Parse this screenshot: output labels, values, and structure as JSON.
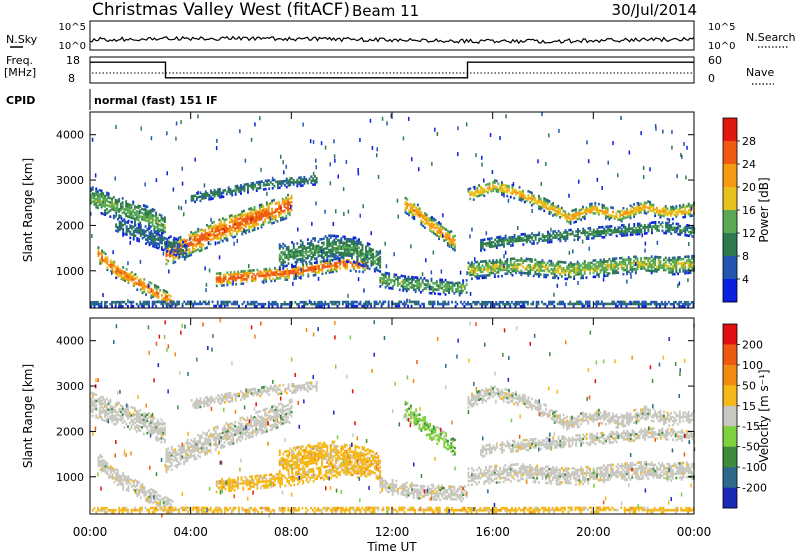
{
  "header": {
    "title": "Christmas Valley West (fitACF)",
    "beam": "Beam 11",
    "date": "30/Jul/2014"
  },
  "top_panels": {
    "nsky_label": "N.Sky",
    "nsky_ticks": [
      "10^5",
      "10^0"
    ],
    "nsearch_label": "N.Search",
    "nsearch_ticks": [
      "10^5",
      "10^0"
    ],
    "freq_label": "Freq.",
    "freq_unit": "[MHz]",
    "freq_ticks": [
      "18",
      "8"
    ],
    "nave_label": "Nave",
    "nave_ticks": [
      "60",
      "0"
    ],
    "cpid_label": "CPID",
    "cpid_value": "normal (fast) 151 IF"
  },
  "x_axis": {
    "label": "Time UT",
    "ticks": [
      "00:00",
      "04:00",
      "08:00",
      "12:00",
      "16:00",
      "20:00",
      "00:00"
    ]
  },
  "chart_data": [
    {
      "type": "heatmap",
      "title": "",
      "xlabel": "Time UT",
      "ylabel": "Slant Range [km]",
      "x_ticks": [
        "00:00",
        "04:00",
        "08:00",
        "12:00",
        "16:00",
        "20:00",
        "00:00"
      ],
      "y_ticks": [
        "1000",
        "2000",
        "3000",
        "4000"
      ],
      "ylim": [
        180,
        4500
      ],
      "colorbar": {
        "label": "Power [dB]",
        "ticks": [
          "4",
          "8",
          "12",
          "16",
          "20",
          "24",
          "28"
        ],
        "colors": [
          "#0b1fe0",
          "#2256b0",
          "#2e7a4e",
          "#5aaa55",
          "#e8c21a",
          "#f59a12",
          "#ee5a12",
          "#e01810"
        ]
      },
      "bands": [
        {
          "t": [
            0.0,
            0.7,
            1.5,
            2.3,
            3.0
          ],
          "r": [
            2600,
            2450,
            2300,
            2150,
            1950
          ],
          "w": 260,
          "p": 14
        },
        {
          "t": [
            0.3,
            1.0,
            1.8,
            2.6,
            3.3
          ],
          "r": [
            1350,
            1000,
            750,
            500,
            280
          ],
          "w": 170,
          "p": 24
        },
        {
          "t": [
            3.0,
            4.0,
            5.0,
            6.0,
            7.0,
            8.0
          ],
          "r": [
            1350,
            1600,
            1850,
            2050,
            2250,
            2450
          ],
          "w": 260,
          "p": 26
        },
        {
          "t": [
            1.0,
            2.0,
            3.0,
            3.8
          ],
          "r": [
            2000,
            1800,
            1600,
            1400
          ],
          "w": 180,
          "p": 9
        },
        {
          "t": [
            4.0,
            5.0,
            6.0,
            7.0,
            8.0,
            9.0
          ],
          "r": [
            2600,
            2700,
            2800,
            2900,
            2950,
            3000
          ],
          "w": 110,
          "p": 10
        },
        {
          "t": [
            5.0,
            6.0,
            7.0,
            8.0,
            9.0,
            10.0,
            11.0
          ],
          "r": [
            800,
            850,
            900,
            950,
            1050,
            1150,
            1100
          ],
          "w": 150,
          "p": 26
        },
        {
          "t": [
            7.5,
            8.5,
            9.5,
            10.5,
            11.5
          ],
          "r": [
            1300,
            1400,
            1500,
            1450,
            1200
          ],
          "w": 280,
          "p": 12
        },
        {
          "t": [
            12.5,
            13.0,
            13.5,
            14.0,
            14.5
          ],
          "r": [
            2450,
            2250,
            2000,
            1800,
            1600
          ],
          "w": 180,
          "p": 22
        },
        {
          "t": [
            15.0,
            16.0,
            17.0,
            18.0,
            19.0,
            20.0,
            21.0,
            22.0,
            23.0,
            24.0
          ],
          "r": [
            2650,
            2850,
            2700,
            2450,
            2150,
            2350,
            2200,
            2400,
            2250,
            2350
          ],
          "w": 140,
          "p": 20
        },
        {
          "t": [
            15.5,
            16.5,
            17.5,
            18.5,
            19.5,
            20.5,
            21.5,
            22.5,
            23.5,
            24.0
          ],
          "r": [
            1550,
            1650,
            1700,
            1750,
            1800,
            1850,
            1900,
            1950,
            1900,
            1850
          ],
          "w": 120,
          "p": 11
        },
        {
          "t": [
            15.0,
            16.0,
            17.0,
            18.0,
            19.0,
            20.0,
            21.0,
            22.0,
            23.0,
            24.0
          ],
          "r": [
            1000,
            1050,
            1100,
            1050,
            1000,
            1050,
            1100,
            1150,
            1100,
            1150
          ],
          "w": 200,
          "p": 16
        },
        {
          "t": [
            11.5,
            12.5,
            13.5,
            14.5,
            15.0
          ],
          "r": [
            800,
            700,
            650,
            600,
            620
          ],
          "w": 160,
          "p": 14
        },
        {
          "t": [
            0.0,
            4.0,
            8.0,
            12.0,
            16.0,
            20.0,
            24.0
          ],
          "r": [
            260,
            270,
            260,
            270,
            260,
            270,
            260
          ],
          "w": 60,
          "p": 8
        }
      ]
    },
    {
      "type": "heatmap",
      "title": "",
      "xlabel": "Time UT",
      "ylabel": "Slant Range [km]",
      "x_ticks": [
        "00:00",
        "04:00",
        "08:00",
        "12:00",
        "16:00",
        "20:00",
        "00:00"
      ],
      "y_ticks": [
        "1000",
        "2000",
        "3000",
        "4000"
      ],
      "ylim": [
        180,
        4500
      ],
      "colorbar": {
        "label": "Velocity [m s⁻¹]",
        "ticks": [
          "200",
          "100",
          "50",
          "15",
          "-15",
          "-50",
          "-100",
          "-200"
        ],
        "colors": [
          "#1a2ab8",
          "#2d6a8a",
          "#3c8c3c",
          "#7ed03c",
          "#c8c8c0",
          "#f5b818",
          "#f08a10",
          "#ec5a10",
          "#e01010"
        ]
      },
      "bands": [
        {
          "t": [
            0.0,
            0.7,
            1.5,
            2.3,
            3.0
          ],
          "r": [
            2600,
            2450,
            2300,
            2150,
            1950
          ],
          "w": 260,
          "v": "gray"
        },
        {
          "t": [
            0.3,
            1.0,
            1.8,
            2.6,
            3.3
          ],
          "r": [
            1350,
            1000,
            750,
            500,
            280
          ],
          "w": 170,
          "v": "gray"
        },
        {
          "t": [
            3.0,
            4.0,
            5.0,
            6.0,
            7.0,
            8.0
          ],
          "r": [
            1350,
            1600,
            1850,
            2050,
            2250,
            2450
          ],
          "w": 260,
          "v": "gray"
        },
        {
          "t": [
            4.0,
            5.0,
            6.0,
            7.0,
            8.0,
            9.0
          ],
          "r": [
            2600,
            2700,
            2800,
            2900,
            2950,
            3000
          ],
          "w": 110,
          "v": "gray"
        },
        {
          "t": [
            5.0,
            6.0,
            7.0,
            8.0,
            9.0,
            10.0,
            11.0
          ],
          "r": [
            800,
            850,
            900,
            950,
            1050,
            1150,
            1100
          ],
          "w": 150,
          "v": "orange"
        },
        {
          "t": [
            7.5,
            8.5,
            9.5,
            10.5,
            11.5
          ],
          "r": [
            1300,
            1400,
            1500,
            1450,
            1200
          ],
          "w": 280,
          "v": "orange"
        },
        {
          "t": [
            12.5,
            13.0,
            13.5,
            14.0,
            14.5
          ],
          "r": [
            2450,
            2250,
            2000,
            1800,
            1600
          ],
          "w": 180,
          "v": "green"
        },
        {
          "t": [
            15.0,
            16.0,
            17.0,
            18.0,
            19.0,
            20.0,
            21.0,
            22.0,
            23.0,
            24.0
          ],
          "r": [
            2650,
            2850,
            2700,
            2450,
            2150,
            2350,
            2200,
            2400,
            2250,
            2350
          ],
          "w": 140,
          "v": "gray"
        },
        {
          "t": [
            15.5,
            16.5,
            17.5,
            18.5,
            19.5,
            20.5,
            21.5,
            22.5,
            23.5,
            24.0
          ],
          "r": [
            1550,
            1650,
            1700,
            1750,
            1800,
            1850,
            1900,
            1950,
            1900,
            1850
          ],
          "w": 120,
          "v": "gray"
        },
        {
          "t": [
            15.0,
            16.0,
            17.0,
            18.0,
            19.0,
            20.0,
            21.0,
            22.0,
            23.0,
            24.0
          ],
          "r": [
            1000,
            1050,
            1100,
            1050,
            1000,
            1050,
            1100,
            1150,
            1100,
            1150
          ],
          "w": 200,
          "v": "gray"
        },
        {
          "t": [
            11.5,
            12.5,
            13.5,
            14.5,
            15.0
          ],
          "r": [
            800,
            700,
            650,
            600,
            620
          ],
          "w": 160,
          "v": "gray"
        },
        {
          "t": [
            0.0,
            4.0,
            8.0,
            12.0,
            16.0,
            20.0,
            24.0
          ],
          "r": [
            260,
            270,
            260,
            270,
            260,
            270,
            260
          ],
          "w": 60,
          "v": "orange"
        }
      ]
    }
  ],
  "freq_trace": {
    "t": [
      0,
      3.0,
      3.0,
      15.0,
      15.0,
      24.0
    ],
    "mhz": [
      16,
      16,
      10,
      10,
      16,
      16
    ]
  },
  "nsky_trace_level": 0.35
}
